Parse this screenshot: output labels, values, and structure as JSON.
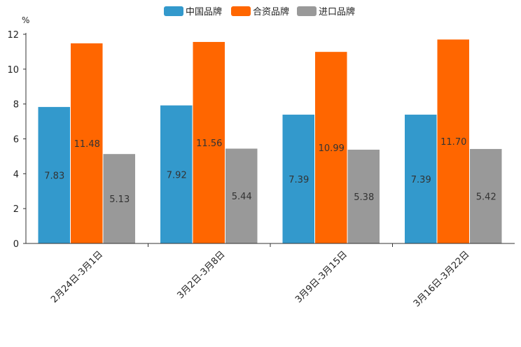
{
  "chart_data": {
    "type": "bar",
    "unit": "%",
    "categories": [
      "2月24日-3月1日",
      "3月2日-3月8日",
      "3月9日-3月15日",
      "3月16日-3月22日"
    ],
    "series": [
      {
        "name": "中国品牌",
        "color": "#3399cc",
        "values": [
          7.83,
          7.92,
          7.39,
          7.39
        ]
      },
      {
        "name": "合资品牌",
        "color": "#ff6600",
        "values": [
          11.48,
          11.56,
          10.99,
          11.7
        ]
      },
      {
        "name": "进口品牌",
        "color": "#999999",
        "values": [
          5.13,
          5.44,
          5.38,
          5.42
        ]
      }
    ],
    "ylim": [
      0,
      12
    ],
    "yticks": [
      0,
      2,
      4,
      6,
      8,
      10,
      12
    ],
    "legend_position": "top-center",
    "grid": false
  }
}
